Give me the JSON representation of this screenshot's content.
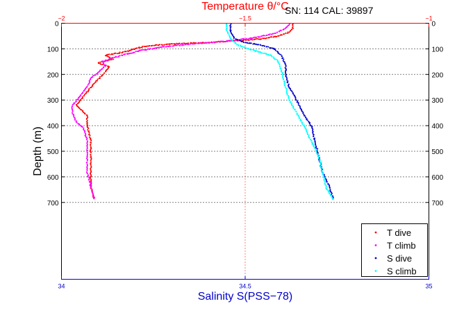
{
  "header": {
    "top_title": "Temperature θ/°C",
    "info": "SN: 114  CAL: 39897"
  },
  "chart_data": {
    "type": "scatter",
    "xlabel": "Salinity S(PSS−78)",
    "ylabel": "Depth (m)",
    "x_primary": {
      "quantity": "salinity",
      "lim": [
        34,
        35
      ],
      "ticks": [
        "34",
        "34.5",
        "35"
      ],
      "color": "#0000cc"
    },
    "x_secondary": {
      "quantity": "temperature",
      "lim": [
        -2,
        -1
      ],
      "ticks": [
        "−2",
        "−1.5",
        "−1"
      ],
      "color": "#ff0000"
    },
    "ylim": [
      0,
      1000
    ],
    "y_reversed": true,
    "yticks": [
      "0",
      "100",
      "200",
      "300",
      "400",
      "500",
      "600",
      "700"
    ],
    "ytick_values": [
      0,
      100,
      200,
      300,
      400,
      500,
      600,
      700
    ],
    "grid": "dotted horizontal at labeled depths; dotted vertical at 34.5 (red)",
    "legend_position": "bottom-right",
    "series": [
      {
        "name": "T dive",
        "axis": "temperature",
        "color": "#ff0000",
        "marker": "dot",
        "points": [
          [
            -1.37,
            3
          ],
          [
            -1.37,
            20
          ],
          [
            -1.38,
            35
          ],
          [
            -1.41,
            50
          ],
          [
            -1.45,
            60
          ],
          [
            -1.52,
            68
          ],
          [
            -1.6,
            75
          ],
          [
            -1.68,
            80
          ],
          [
            -1.74,
            85
          ],
          [
            -1.78,
            92
          ],
          [
            -1.8,
            100
          ],
          [
            -1.82,
            110
          ],
          [
            -1.88,
            125
          ],
          [
            -1.86,
            140
          ],
          [
            -1.9,
            155
          ],
          [
            -1.87,
            170
          ],
          [
            -1.88,
            190
          ],
          [
            -1.9,
            220
          ],
          [
            -1.92,
            250
          ],
          [
            -1.94,
            285
          ],
          [
            -1.96,
            320
          ],
          [
            -1.93,
            360
          ],
          [
            -1.93,
            400
          ],
          [
            -1.92,
            460
          ],
          [
            -1.92,
            520
          ],
          [
            -1.92,
            580
          ],
          [
            -1.92,
            640
          ],
          [
            -1.91,
            690
          ]
        ]
      },
      {
        "name": "T climb",
        "axis": "temperature",
        "color": "#ff00ff",
        "marker": "dot",
        "points": [
          [
            -1.38,
            3
          ],
          [
            -1.39,
            20
          ],
          [
            -1.42,
            40
          ],
          [
            -1.48,
            58
          ],
          [
            -1.55,
            70
          ],
          [
            -1.65,
            82
          ],
          [
            -1.72,
            92
          ],
          [
            -1.78,
            105
          ],
          [
            -1.82,
            120
          ],
          [
            -1.86,
            135
          ],
          [
            -1.89,
            150
          ],
          [
            -1.88,
            165
          ],
          [
            -1.89,
            180
          ],
          [
            -1.92,
            215
          ],
          [
            -1.93,
            250
          ],
          [
            -1.95,
            285
          ],
          [
            -1.97,
            320
          ],
          [
            -1.97,
            350
          ],
          [
            -1.96,
            385
          ],
          [
            -1.94,
            410
          ],
          [
            -1.93,
            460
          ],
          [
            -1.93,
            520
          ],
          [
            -1.93,
            580
          ],
          [
            -1.92,
            640
          ],
          [
            -1.91,
            690
          ]
        ]
      },
      {
        "name": "S dive",
        "axis": "salinity",
        "color": "#0000cc",
        "marker": "dot",
        "points": [
          [
            34.46,
            3
          ],
          [
            34.46,
            30
          ],
          [
            34.47,
            60
          ],
          [
            34.5,
            75
          ],
          [
            34.54,
            85
          ],
          [
            34.58,
            100
          ],
          [
            34.6,
            130
          ],
          [
            34.61,
            165
          ],
          [
            34.61,
            200
          ],
          [
            34.62,
            250
          ],
          [
            34.64,
            300
          ],
          [
            34.66,
            360
          ],
          [
            34.68,
            400
          ],
          [
            34.69,
            460
          ],
          [
            34.7,
            520
          ],
          [
            34.71,
            580
          ],
          [
            34.73,
            640
          ],
          [
            34.74,
            690
          ]
        ]
      },
      {
        "name": "S climb",
        "axis": "salinity",
        "color": "#00ffff",
        "marker": "dot",
        "points": [
          [
            34.45,
            3
          ],
          [
            34.45,
            30
          ],
          [
            34.46,
            60
          ],
          [
            34.48,
            85
          ],
          [
            34.52,
            105
          ],
          [
            34.57,
            125
          ],
          [
            34.59,
            150
          ],
          [
            34.6,
            190
          ],
          [
            34.61,
            250
          ],
          [
            34.62,
            300
          ],
          [
            34.64,
            350
          ],
          [
            34.66,
            400
          ],
          [
            34.68,
            460
          ],
          [
            34.7,
            520
          ],
          [
            34.71,
            580
          ],
          [
            34.72,
            640
          ],
          [
            34.74,
            690
          ]
        ]
      }
    ]
  }
}
